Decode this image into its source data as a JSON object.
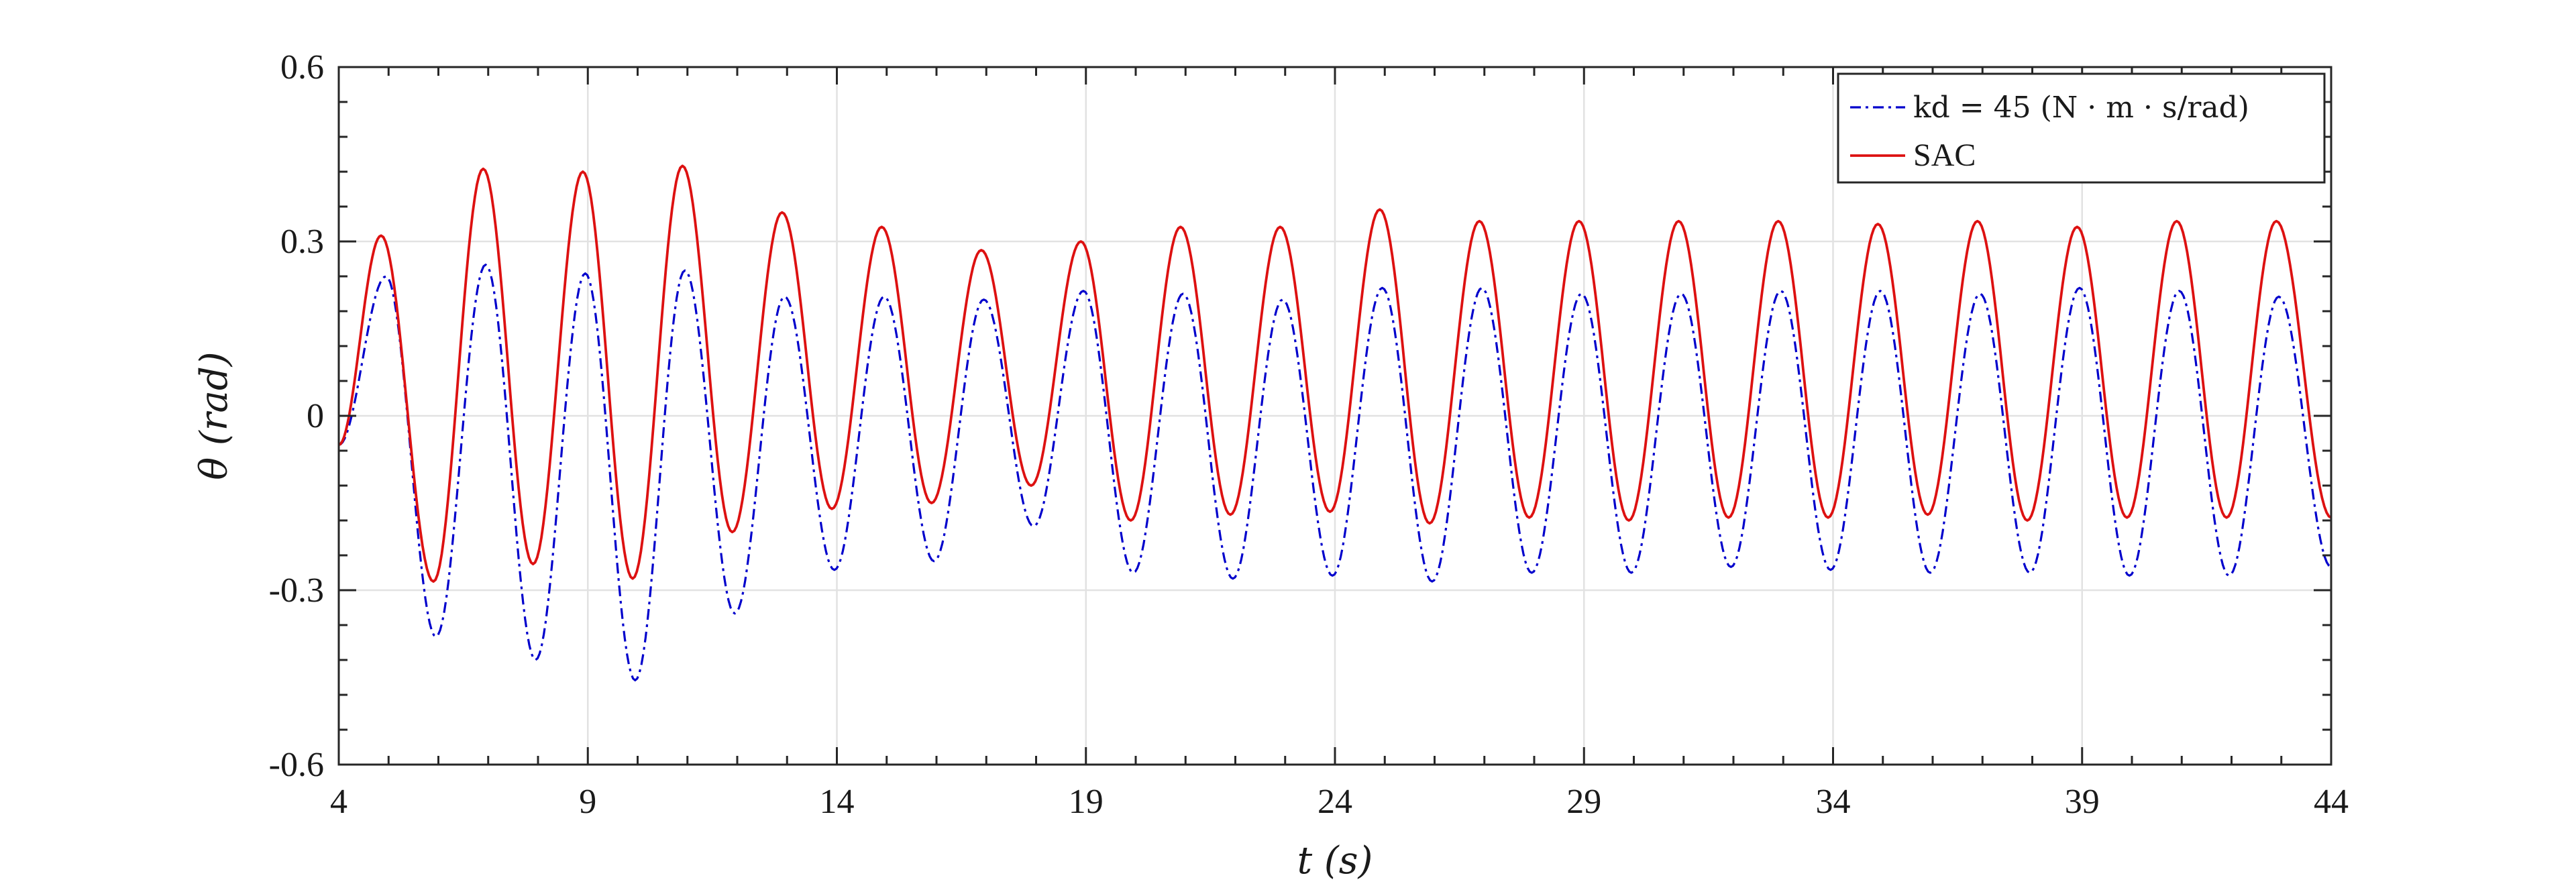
{
  "chart_data": {
    "type": "line",
    "xlabel": "t (s)",
    "ylabel": "θ (rad)",
    "xlim": [
      4,
      44
    ],
    "ylim": [
      -0.6,
      0.6
    ],
    "x_ticks": [
      4,
      9,
      14,
      19,
      24,
      29,
      34,
      39,
      44
    ],
    "y_ticks": [
      -0.6,
      -0.3,
      0,
      0.3,
      0.6
    ],
    "x_tick_labels": [
      "4",
      "9",
      "14",
      "19",
      "24",
      "29",
      "34",
      "39",
      "44"
    ],
    "y_tick_labels": [
      "-0.6",
      "-0.3",
      "0",
      "0.3",
      "0.6"
    ],
    "grid": true,
    "legend_position": "top-right",
    "series": [
      {
        "name": "k_d = 45 (N · m · s/rad)",
        "legend_label": "kd = 45 (N · m · s/rad)",
        "color": "#0000cc",
        "style": "dash-dot",
        "start": [
          4.0,
          -0.05
        ],
        "peaks": [
          [
            4.95,
            0.24
          ],
          [
            6.95,
            0.26
          ],
          [
            8.95,
            0.245
          ],
          [
            10.95,
            0.25
          ],
          [
            12.95,
            0.205
          ],
          [
            14.95,
            0.205
          ],
          [
            16.95,
            0.2
          ],
          [
            18.95,
            0.215
          ],
          [
            20.95,
            0.21
          ],
          [
            22.95,
            0.2
          ],
          [
            24.95,
            0.22
          ],
          [
            26.95,
            0.22
          ],
          [
            28.95,
            0.21
          ],
          [
            30.95,
            0.21
          ],
          [
            32.95,
            0.215
          ],
          [
            34.95,
            0.215
          ],
          [
            36.95,
            0.21
          ],
          [
            38.95,
            0.22
          ],
          [
            40.95,
            0.215
          ],
          [
            42.95,
            0.205
          ]
        ],
        "troughs": [
          [
            5.95,
            -0.38
          ],
          [
            7.95,
            -0.42
          ],
          [
            9.95,
            -0.455
          ],
          [
            11.95,
            -0.34
          ],
          [
            13.95,
            -0.265
          ],
          [
            15.95,
            -0.25
          ],
          [
            17.95,
            -0.19
          ],
          [
            19.95,
            -0.27
          ],
          [
            21.95,
            -0.28
          ],
          [
            23.95,
            -0.275
          ],
          [
            25.95,
            -0.285
          ],
          [
            27.95,
            -0.27
          ],
          [
            29.95,
            -0.27
          ],
          [
            31.95,
            -0.26
          ],
          [
            33.95,
            -0.265
          ],
          [
            35.95,
            -0.27
          ],
          [
            37.95,
            -0.27
          ],
          [
            39.95,
            -0.275
          ],
          [
            41.95,
            -0.275
          ]
        ],
        "end": [
          44.0,
          -0.26
        ]
      },
      {
        "name": "SAC",
        "legend_label": "SAC",
        "color": "#dd1111",
        "style": "solid",
        "start": [
          4.0,
          -0.05
        ],
        "peaks": [
          [
            4.85,
            0.31
          ],
          [
            6.9,
            0.425
          ],
          [
            8.9,
            0.42
          ],
          [
            10.9,
            0.43
          ],
          [
            12.9,
            0.35
          ],
          [
            14.9,
            0.325
          ],
          [
            16.9,
            0.285
          ],
          [
            18.9,
            0.3
          ],
          [
            20.9,
            0.325
          ],
          [
            22.9,
            0.325
          ],
          [
            24.9,
            0.355
          ],
          [
            26.9,
            0.335
          ],
          [
            28.9,
            0.335
          ],
          [
            30.9,
            0.335
          ],
          [
            32.9,
            0.335
          ],
          [
            34.9,
            0.33
          ],
          [
            36.9,
            0.335
          ],
          [
            38.9,
            0.325
          ],
          [
            40.9,
            0.335
          ],
          [
            42.9,
            0.335
          ]
        ],
        "troughs": [
          [
            5.9,
            -0.285
          ],
          [
            7.9,
            -0.255
          ],
          [
            9.9,
            -0.28
          ],
          [
            11.9,
            -0.2
          ],
          [
            13.9,
            -0.16
          ],
          [
            15.9,
            -0.15
          ],
          [
            17.9,
            -0.12
          ],
          [
            19.9,
            -0.18
          ],
          [
            21.9,
            -0.17
          ],
          [
            23.9,
            -0.165
          ],
          [
            25.9,
            -0.185
          ],
          [
            27.9,
            -0.175
          ],
          [
            29.9,
            -0.18
          ],
          [
            31.9,
            -0.175
          ],
          [
            33.9,
            -0.175
          ],
          [
            35.9,
            -0.17
          ],
          [
            37.9,
            -0.18
          ],
          [
            39.9,
            -0.175
          ],
          [
            41.9,
            -0.175
          ]
        ],
        "end": [
          44.0,
          -0.175
        ]
      }
    ]
  }
}
